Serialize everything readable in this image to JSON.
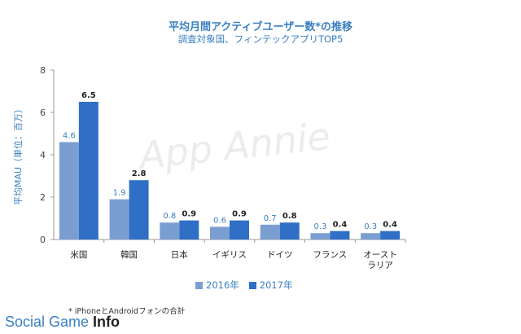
{
  "title": "平均月間アクティブユーザー数*の推移",
  "subtitle": "調査対象国、フィンテックアプリTOP5",
  "footnote": "* iPhoneとAndroidフォンの合計",
  "watermark": "App Annie",
  "brand": {
    "part1": "Social Game ",
    "part2": "Info"
  },
  "colors": {
    "series2016": "#7b9ed1",
    "series2017": "#2f6fc6",
    "text": "#3a7fc1"
  },
  "chart_data": {
    "type": "bar",
    "title": "平均月間アクティブユーザー数*の推移",
    "subtitle": "調査対象国、フィンテックアプリTOP5",
    "ylabel": "平均MAU（単位：百万）",
    "xlabel": "",
    "ylim": [
      0,
      8
    ],
    "yticks": [
      0,
      2,
      4,
      6,
      8
    ],
    "categories": [
      "米国",
      "韓国",
      "日本",
      "イギリス",
      "ドイツ",
      "フランス",
      "オースト\nラリア"
    ],
    "series": [
      {
        "name": "2016年",
        "values": [
          4.6,
          1.9,
          0.8,
          0.6,
          0.7,
          0.3,
          0.3
        ],
        "labels": [
          "4.6",
          "1.9",
          "0.8",
          "0.6",
          "0.7",
          "0.3",
          "0.3"
        ]
      },
      {
        "name": "2017年",
        "values": [
          6.5,
          2.8,
          0.9,
          0.9,
          0.8,
          0.4,
          0.4
        ],
        "labels": [
          "6.5",
          "2.8",
          "0.9",
          "0.9",
          "0.8",
          "0.4",
          "0.4"
        ]
      }
    ],
    "grid": false,
    "legend": "bottom-center"
  }
}
